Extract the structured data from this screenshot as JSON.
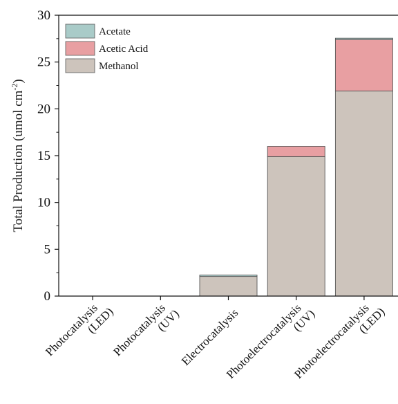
{
  "chart_data": {
    "type": "bar",
    "stacked": true,
    "categories": [
      [
        "Photocatalysis",
        "(LED)"
      ],
      [
        "Photocatalysis",
        "(UV)"
      ],
      [
        "Electrocatalysis"
      ],
      [
        "Photoelectrocatalysis",
        "(UV)"
      ],
      [
        "Photoelectrocatalysis",
        "(LED)"
      ]
    ],
    "series": [
      {
        "name": "Methanol",
        "color": "#cdc4bc",
        "values": [
          0,
          0,
          2.1,
          14.9,
          21.9
        ]
      },
      {
        "name": "Acetic Acid",
        "color": "#e89fa2",
        "values": [
          0,
          0,
          0,
          1.1,
          5.5
        ]
      },
      {
        "name": "Acetate",
        "color": "#a9cbc8",
        "values": [
          0,
          0,
          0.15,
          0,
          0.15
        ]
      }
    ],
    "legend_order": [
      "Acetate",
      "Acetic Acid",
      "Methanol"
    ],
    "legend_position": "top-left",
    "ylabel": "Total Production (umol cm",
    "ylabel_sup": "-2",
    "ylabel_close": ")",
    "ylim": [
      0,
      30
    ],
    "yticks": [
      "0",
      "5",
      "10",
      "15",
      "20",
      "25",
      "30"
    ],
    "grid": false
  }
}
